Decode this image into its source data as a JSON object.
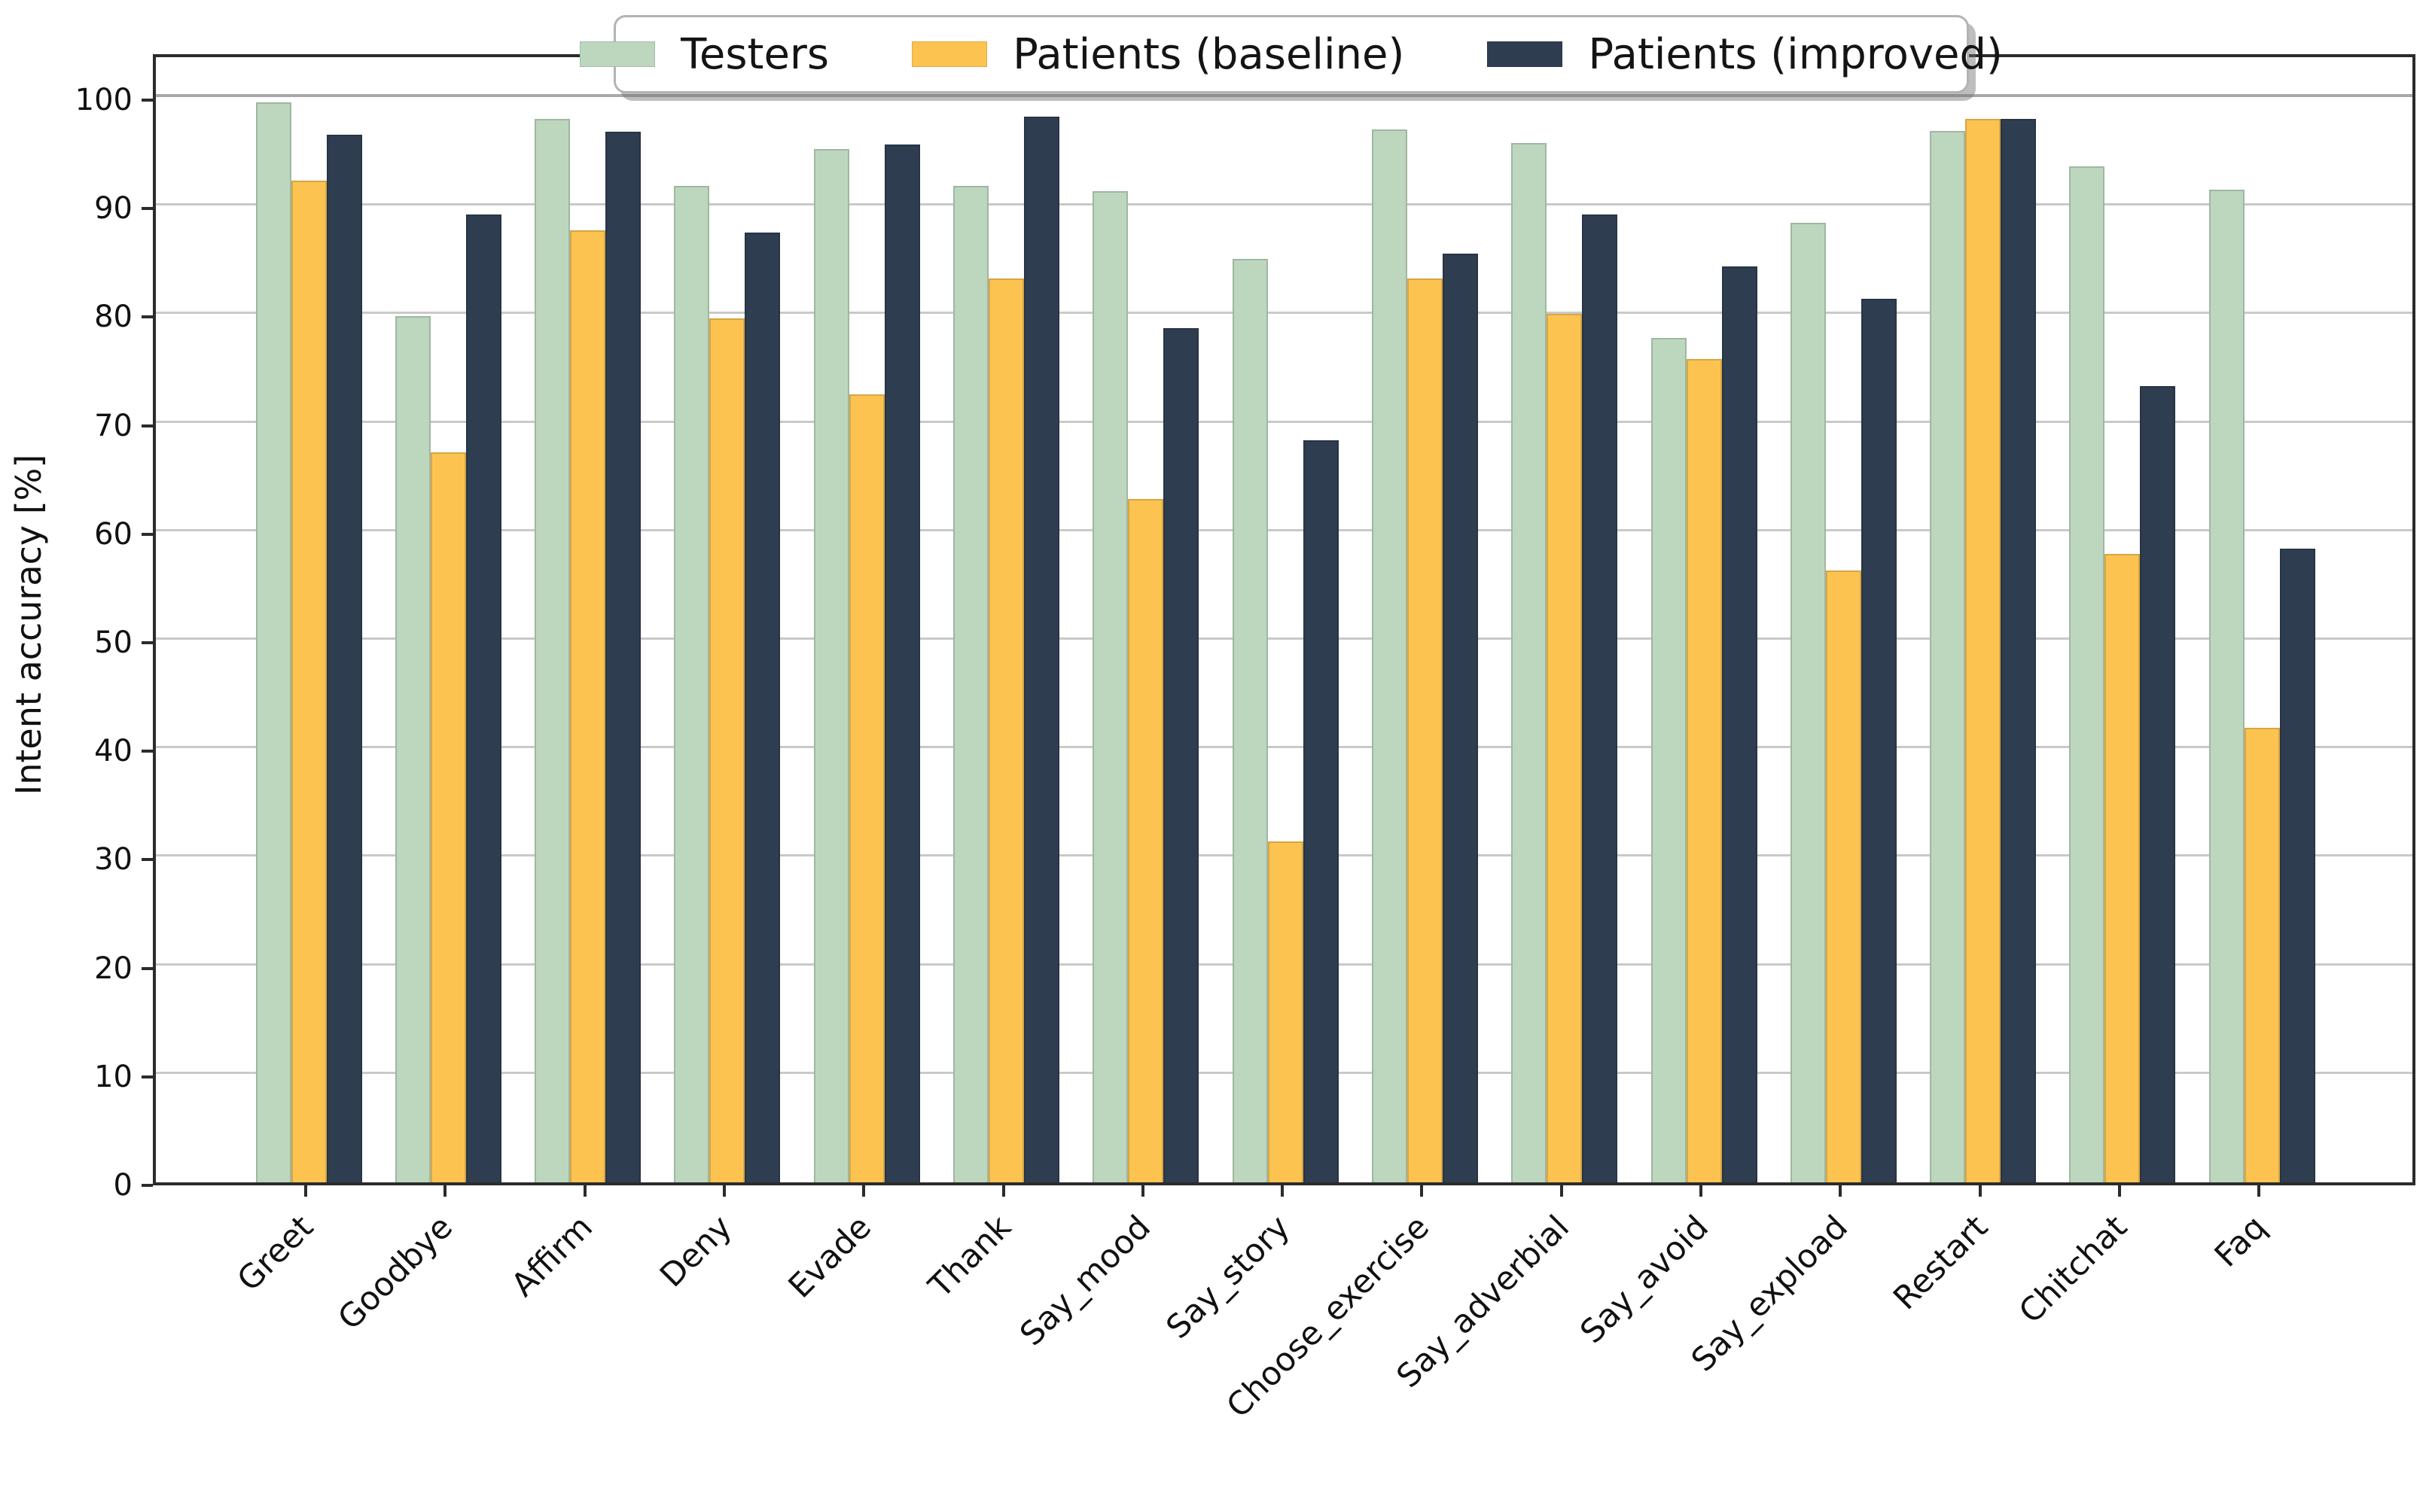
{
  "figure": {
    "background": "#ffffff",
    "axis_color": "#2b2b2b",
    "gridline_color": "#c9c9c9"
  },
  "chart_data": {
    "type": "bar",
    "title": "",
    "xlabel": "",
    "ylabel": "Intent accuracy [%]",
    "ylim": [
      0,
      104.2
    ],
    "yticks": [
      0,
      10,
      20,
      30,
      40,
      50,
      60,
      70,
      80,
      90,
      100
    ],
    "grid": true,
    "legend_position": "top center",
    "categories": [
      "Greet",
      "Goodbye",
      "Affirm",
      "Deny",
      "Evade",
      "Thank",
      "Say_mood",
      "Say_story",
      "Choose_exercise",
      "Say_adverbial",
      "Say_avoid",
      "Say_expload",
      "Restart",
      "Chitchat",
      "Faq"
    ],
    "series": [
      {
        "name": "Testers",
        "color": "#bcd7be",
        "values": [
          99.5,
          79.8,
          98.0,
          91.8,
          95.2,
          91.8,
          91.3,
          85.1,
          97.0,
          95.8,
          77.8,
          88.4,
          96.9,
          93.6,
          91.5
        ]
      },
      {
        "name": "Patients (baseline)",
        "color": "#fcc351",
        "values": [
          92.3,
          67.3,
          87.7,
          79.6,
          72.6,
          83.3,
          63.0,
          31.4,
          83.3,
          80.0,
          75.9,
          56.4,
          98.0,
          57.9,
          41.9
        ]
      },
      {
        "name": "Patients (improved)",
        "color": "#2e3e50",
        "values": [
          96.5,
          89.2,
          96.8,
          87.5,
          95.6,
          98.2,
          78.7,
          68.4,
          85.6,
          89.2,
          84.4,
          81.4,
          98.0,
          73.4,
          58.4
        ]
      }
    ]
  }
}
